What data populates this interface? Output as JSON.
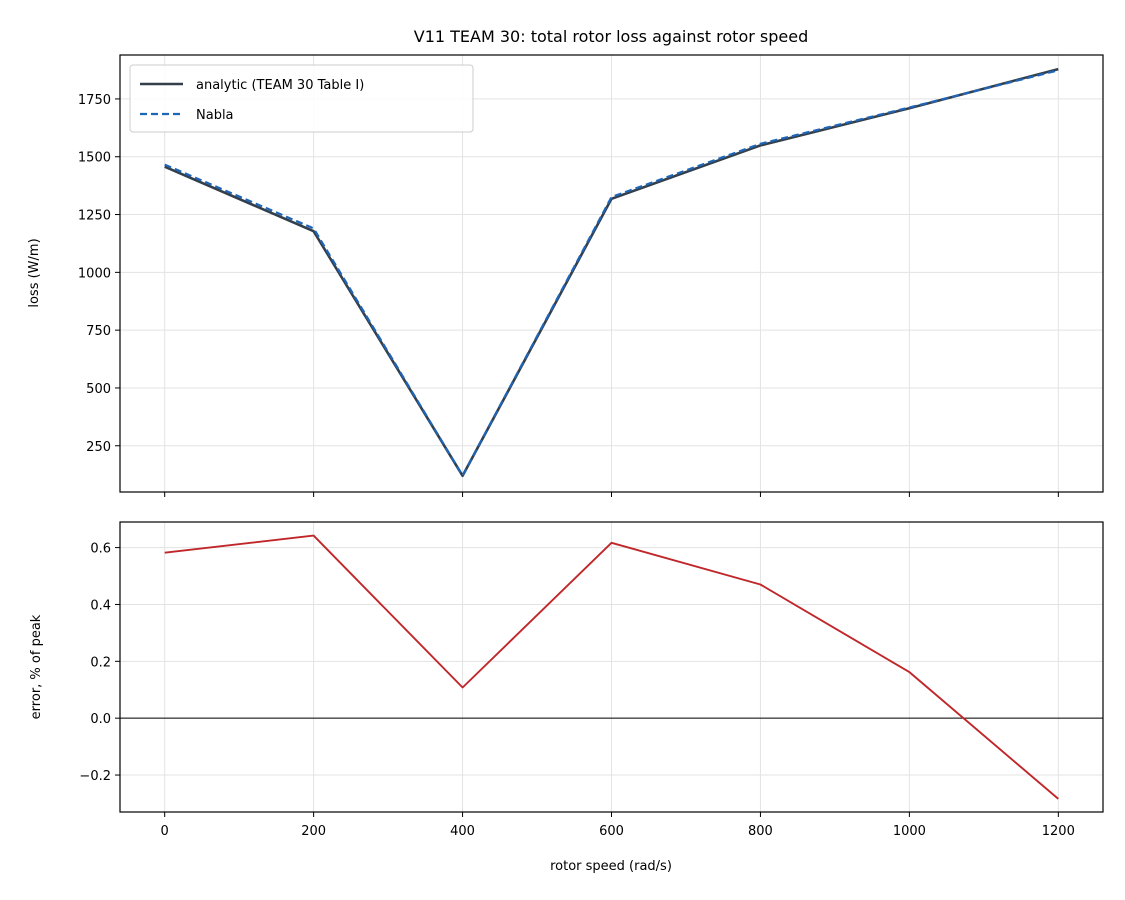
{
  "chart_data": [
    {
      "type": "line",
      "title": "V11 TEAM 30: total rotor loss against rotor speed",
      "xlabel": "",
      "ylabel": "loss (W/m)",
      "xlim": [
        -60,
        1260
      ],
      "ylim": [
        50,
        1940
      ],
      "x_ticks": [
        0,
        200,
        400,
        600,
        800,
        1000,
        1200
      ],
      "x_tick_labels_shown": false,
      "y_ticks": [
        250,
        500,
        750,
        1000,
        1250,
        1500,
        1750
      ],
      "grid": true,
      "legend_position": "upper-left",
      "series": [
        {
          "name": "analytic (TEAM 30 Table I)",
          "style": "solid",
          "color": "#333f4b",
          "x": [
            0,
            200,
            400,
            600,
            800,
            1000,
            1200
          ],
          "y": [
            1457,
            1178,
            120,
            1318,
            1549,
            1710,
            1879
          ]
        },
        {
          "name": "Nabla",
          "style": "dashed",
          "color": "#1f65b7",
          "x": [
            0,
            200,
            400,
            600,
            800,
            1000,
            1200
          ],
          "y": [
            1466,
            1190,
            121,
            1326,
            1556,
            1713,
            1874
          ]
        }
      ]
    },
    {
      "type": "line",
      "title": "",
      "xlabel": "rotor speed (rad/s)",
      "ylabel": "error, % of peak",
      "xlim": [
        -60,
        1260
      ],
      "ylim": [
        -0.33,
        0.69
      ],
      "x_ticks": [
        0,
        200,
        400,
        600,
        800,
        1000,
        1200
      ],
      "y_ticks": [
        -0.2,
        0.0,
        0.2,
        0.4,
        0.6
      ],
      "grid": true,
      "zero_line": true,
      "series": [
        {
          "style": "solid",
          "color": "#c0272a",
          "x": [
            0,
            200,
            400,
            600,
            800,
            1000,
            1200
          ],
          "y": [
            0.582,
            0.642,
            0.108,
            0.617,
            0.47,
            0.162,
            -0.284
          ]
        }
      ]
    }
  ]
}
